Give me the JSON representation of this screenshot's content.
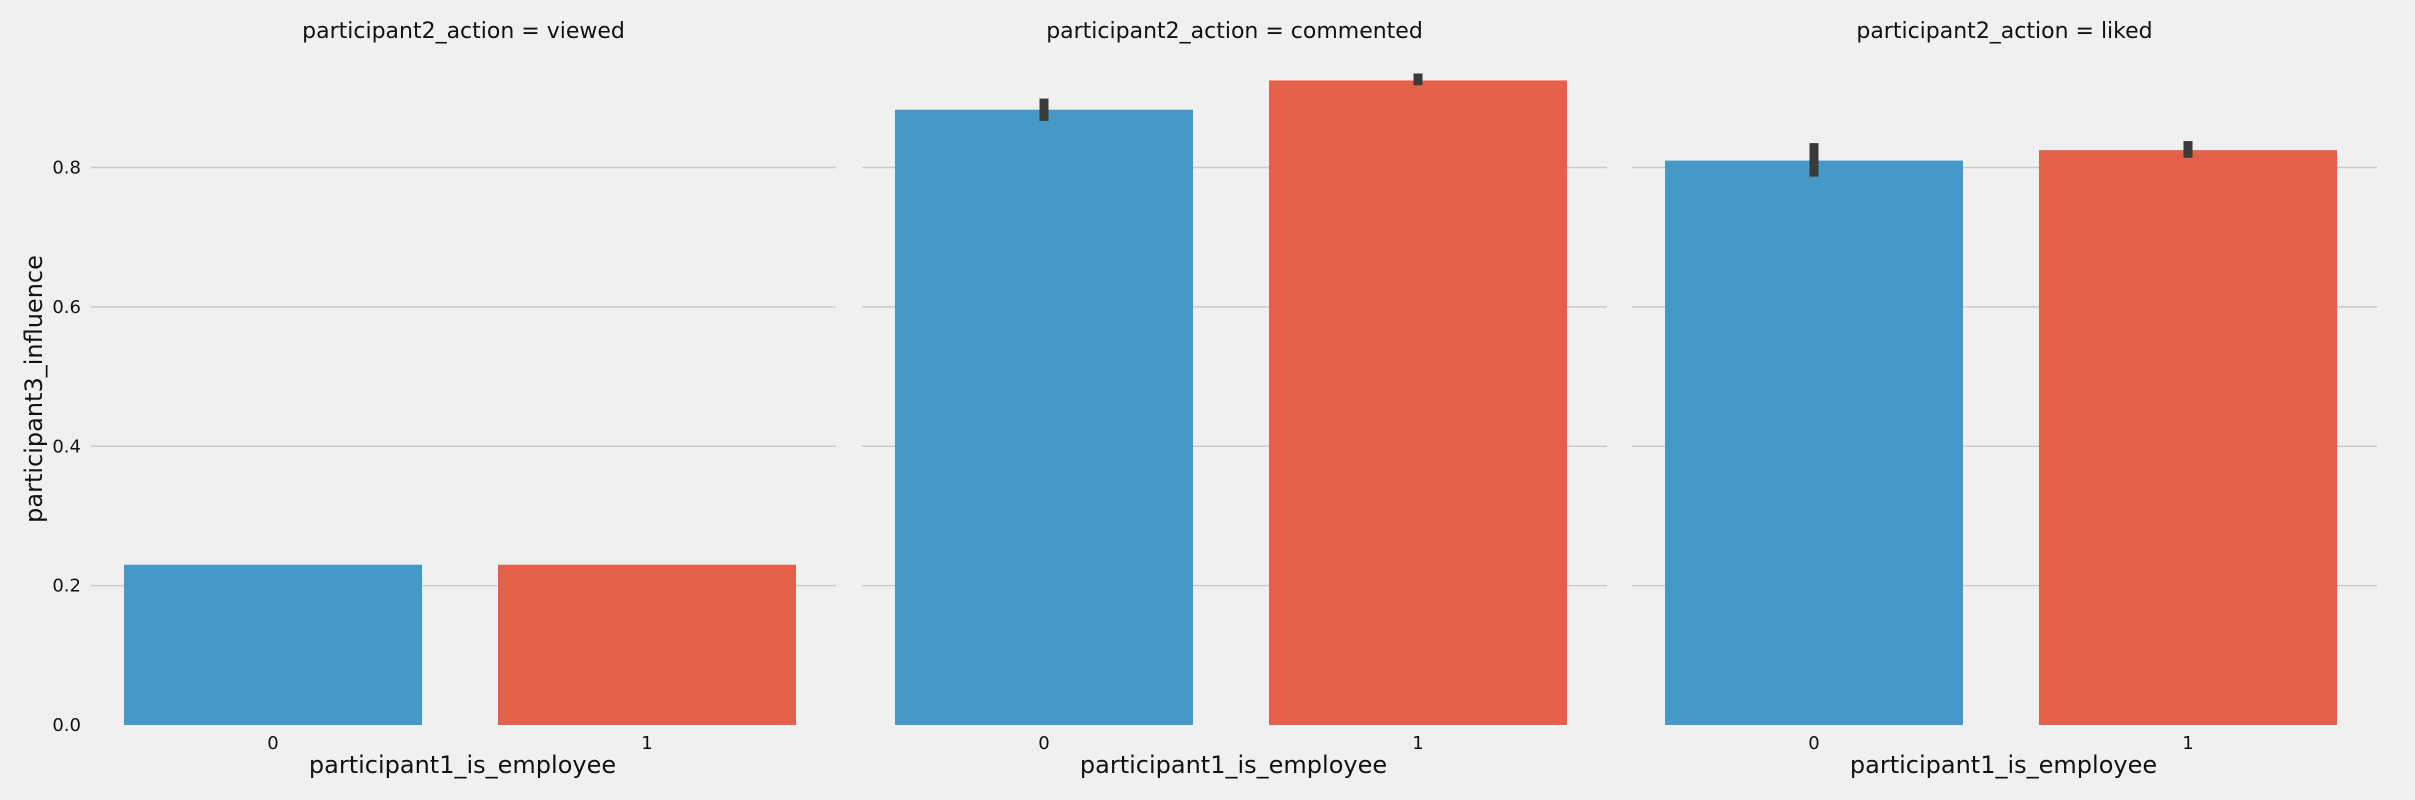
{
  "chart_data": {
    "type": "bar",
    "ylabel": "participant3_influence",
    "ylim": [
      0,
      0.94
    ],
    "yticks": [
      0.0,
      0.2,
      0.4,
      0.6,
      0.8
    ],
    "ytick_labels": [
      "0.0",
      "0.2",
      "0.4",
      "0.6",
      "0.8"
    ],
    "grid": true,
    "colors": [
      "#4699c6",
      "#e4604a"
    ],
    "panels": [
      {
        "title": "participant2_action = viewed",
        "xlabel": "participant1_is_employee",
        "categories": [
          "0",
          "1"
        ],
        "values": [
          0.23,
          0.23
        ],
        "ci": [
          [
            0.23,
            0.23
          ],
          [
            0.23,
            0.23
          ]
        ]
      },
      {
        "title": "participant2_action = commented",
        "xlabel": "participant1_is_employee",
        "categories": [
          "0",
          "1"
        ],
        "values": [
          0.883,
          0.925
        ],
        "ci": [
          [
            0.867,
            0.899
          ],
          [
            0.918,
            0.935
          ]
        ]
      },
      {
        "title": "participant2_action = liked",
        "xlabel": "participant1_is_employee",
        "categories": [
          "0",
          "1"
        ],
        "values": [
          0.81,
          0.825
        ],
        "ci": [
          [
            0.787,
            0.835
          ],
          [
            0.814,
            0.838
          ]
        ]
      }
    ]
  }
}
